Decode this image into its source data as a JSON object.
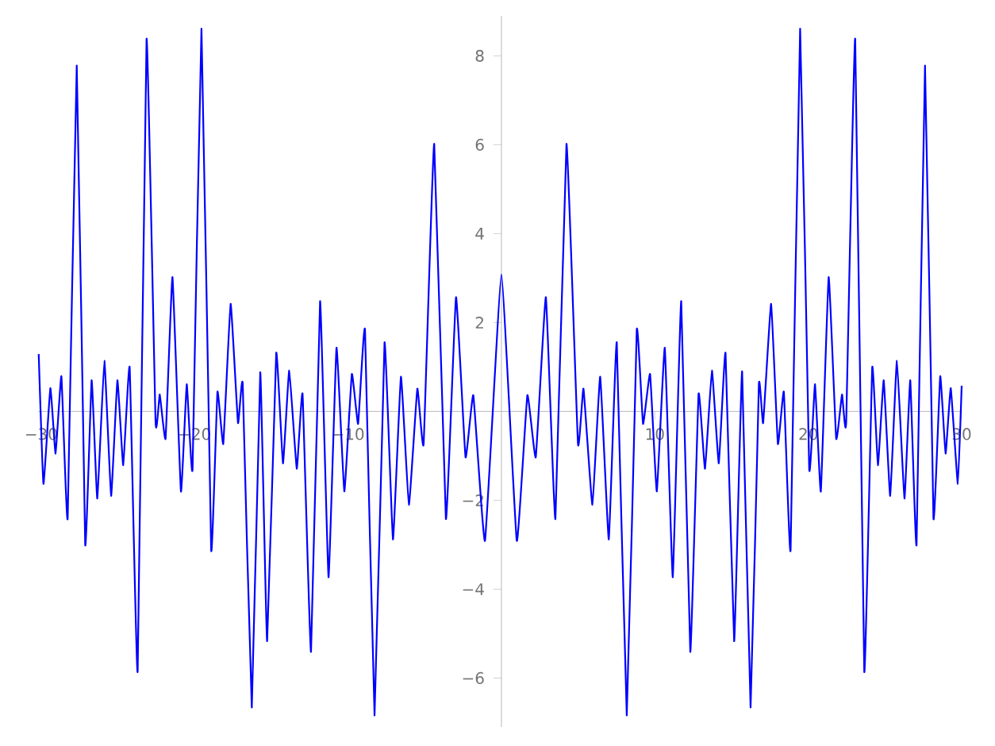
{
  "chart_data": {
    "type": "line",
    "xlim": [
      -30.2,
      30.0
    ],
    "ylim": [
      -7.1,
      8.9
    ],
    "xticks": [
      {
        "value": -30,
        "label": "−30"
      },
      {
        "value": -20,
        "label": "−20"
      },
      {
        "value": -10,
        "label": "−10"
      },
      10,
      20,
      30
    ],
    "yticks": [
      {
        "value": -6,
        "label": "−6"
      },
      {
        "value": -4,
        "label": "−4"
      },
      {
        "value": -2,
        "label": "−2"
      },
      2,
      4,
      6,
      8
    ],
    "series": [
      {
        "color": "#0000ff",
        "line_style": "solid",
        "marker": "none",
        "x": [
          -30.16,
          -29.85,
          -29.4,
          -29.06,
          -28.68,
          -28.27,
          -27.68,
          -27.13,
          -26.71,
          -26.34,
          -25.88,
          -25.44,
          -25.03,
          -24.65,
          -24.23,
          -23.71,
          -23.13,
          -22.54,
          -22.27,
          -21.89,
          -21.44,
          -20.89,
          -20.51,
          -20.13,
          -19.55,
          -18.92,
          -18.51,
          -18.13,
          -17.65,
          -17.17,
          -16.86,
          -16.27,
          -15.72,
          -15.27,
          -14.68,
          -14.24,
          -13.83,
          -13.34,
          -12.96,
          -12.41,
          -11.82,
          -11.27,
          -10.75,
          -10.24,
          -9.75,
          -9.34,
          -8.89,
          -8.27,
          -7.62,
          -7.07,
          -6.55,
          -6.03,
          -5.48,
          -5.07,
          -4.38,
          -3.62,
          -2.96,
          -2.34,
          -1.83,
          -1.07,
          0.0,
          1.0,
          1.69,
          2.24,
          2.9,
          3.52,
          4.24,
          4.99,
          5.35,
          5.93,
          6.44,
          7.0,
          7.52,
          8.17,
          8.82,
          9.23,
          9.69,
          10.13,
          10.65,
          11.17,
          11.72,
          12.31,
          12.85,
          13.27,
          13.72,
          14.17,
          14.61,
          15.17,
          15.69,
          16.24,
          16.78,
          17.06,
          17.58,
          18.02,
          18.41,
          18.85,
          19.47,
          20.06,
          20.44,
          20.82,
          21.33,
          21.82,
          22.2,
          22.47,
          23.06,
          23.65,
          24.17,
          24.54,
          24.92,
          25.34,
          25.78,
          26.27,
          26.65,
          27.06,
          27.61,
          28.16,
          28.6,
          28.95,
          29.29,
          29.75,
          30.0
        ],
        "values": [
          1.29,
          -1.63,
          0.52,
          -0.95,
          0.79,
          -2.4,
          7.78,
          -2.99,
          0.7,
          -1.96,
          1.14,
          -1.9,
          0.7,
          -1.21,
          0.99,
          -5.85,
          8.38,
          -0.26,
          0.38,
          -0.61,
          3.02,
          -1.8,
          0.61,
          -1.29,
          8.61,
          -3.11,
          0.44,
          -0.73,
          2.42,
          -0.26,
          0.61,
          -6.66,
          0.88,
          -5.17,
          1.31,
          -1.17,
          0.92,
          -1.29,
          0.39,
          -5.41,
          2.48,
          -3.73,
          1.43,
          -1.8,
          0.84,
          -0.28,
          1.83,
          -6.84,
          1.55,
          -2.88,
          0.78,
          -2.1,
          0.51,
          -0.73,
          6.02,
          -2.42,
          2.57,
          -1.03,
          0.36,
          -2.91,
          3.08,
          -2.91,
          0.36,
          -1.03,
          2.57,
          -2.42,
          6.02,
          -0.73,
          0.51,
          -2.1,
          0.78,
          -2.88,
          1.55,
          -6.84,
          1.83,
          -0.28,
          0.84,
          -1.8,
          1.43,
          -3.73,
          2.48,
          -5.41,
          0.39,
          -1.29,
          0.92,
          -1.17,
          1.31,
          -5.17,
          0.9,
          -6.66,
          0.61,
          -0.26,
          2.42,
          -0.73,
          0.44,
          -3.11,
          8.61,
          -1.29,
          0.61,
          -1.8,
          3.02,
          -0.61,
          0.38,
          -0.26,
          8.38,
          -5.85,
          0.99,
          -1.21,
          0.7,
          -1.9,
          1.14,
          -1.96,
          0.7,
          -2.99,
          7.78,
          -2.4,
          0.79,
          -0.95,
          0.52,
          -1.63,
          0.58
        ]
      }
    ]
  }
}
